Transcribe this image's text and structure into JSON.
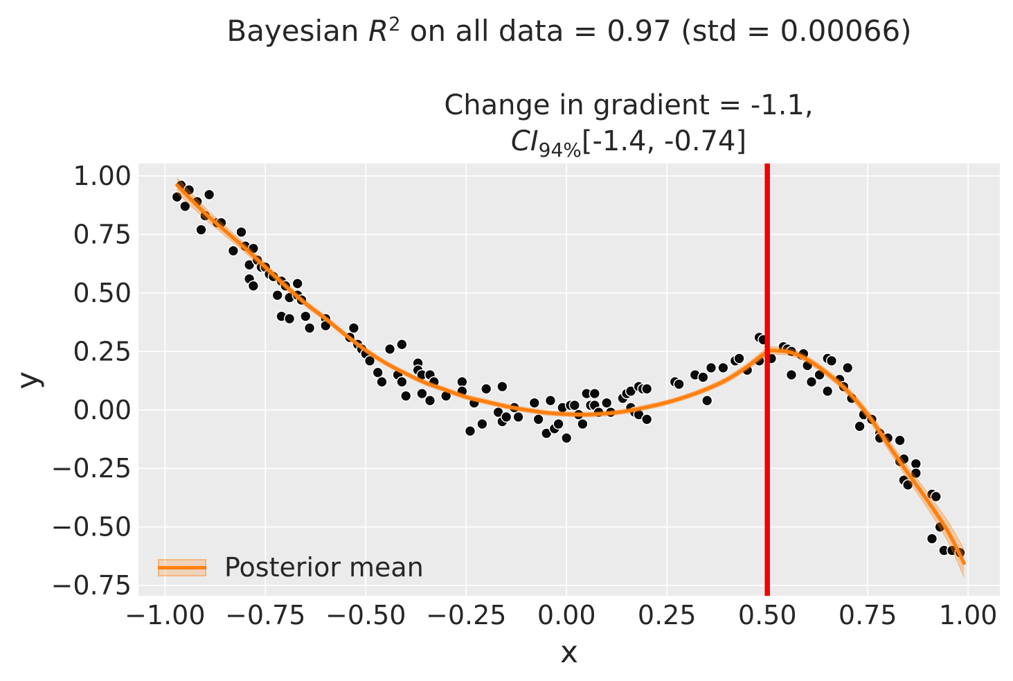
{
  "chart_data": {
    "type": "scatter",
    "title": {
      "prefix": "Bayesian ",
      "var": "R",
      "sup": "2",
      "rest": " on all data = 0.97 (std = 0.00066)"
    },
    "subtitle": {
      "line1": "Change in gradient = -1.1,",
      "ci_var": "CI",
      "ci_sub": "94%",
      "ci_rest": "[-1.4, -0.74]"
    },
    "xlabel": "x",
    "ylabel": "y",
    "xlim": [
      -1.066,
      1.079
    ],
    "ylim": [
      -0.794,
      1.053
    ],
    "grid": true,
    "x_ticks": {
      "values": [
        -1.0,
        -0.75,
        -0.5,
        -0.25,
        0.0,
        0.25,
        0.5,
        0.75,
        1.0
      ],
      "labels": [
        "−1.00",
        "−0.75",
        "−0.50",
        "−0.25",
        "0.00",
        "0.25",
        "0.50",
        "0.75",
        "1.00"
      ]
    },
    "y_ticks": {
      "values": [
        1.0,
        0.75,
        0.5,
        0.25,
        0.0,
        -0.25,
        -0.5,
        -0.75
      ],
      "labels": [
        "1.00",
        "0.75",
        "0.50",
        "0.25",
        "0.00",
        "−0.25",
        "−0.50",
        "−0.75"
      ]
    },
    "legend": {
      "position": "lower-left",
      "entries": [
        {
          "label": "Posterior mean",
          "type": "line-with-band"
        }
      ]
    },
    "vline": {
      "x": 0.5
    },
    "colors": {
      "figure_bg": "#ffffff",
      "axes_bg": "#ebebeb",
      "grid": "#ffffff",
      "text": "#262626",
      "scatter_fill": "#0a0a0a",
      "scatter_edge": "#ffffff",
      "mean_line": "#ff7f0e",
      "band_fill": "#ff7f0e",
      "band_opacity": 0.22,
      "vline": "#f20000"
    },
    "posterior_mean": {
      "x": [
        -0.97,
        -0.9,
        -0.85,
        -0.8,
        -0.75,
        -0.7,
        -0.65,
        -0.6,
        -0.55,
        -0.5,
        -0.45,
        -0.4,
        -0.35,
        -0.3,
        -0.25,
        -0.2,
        -0.15,
        -0.1,
        -0.05,
        0.0,
        0.05,
        0.1,
        0.15,
        0.2,
        0.25,
        0.3,
        0.35,
        0.4,
        0.45,
        0.5,
        0.53,
        0.56,
        0.6,
        0.65,
        0.7,
        0.75,
        0.8,
        0.85,
        0.9,
        0.95,
        0.99
      ],
      "y": [
        0.96,
        0.84,
        0.765,
        0.69,
        0.61,
        0.53,
        0.455,
        0.39,
        0.32,
        0.255,
        0.2,
        0.155,
        0.115,
        0.085,
        0.055,
        0.035,
        0.015,
        0.0,
        -0.012,
        -0.018,
        -0.02,
        -0.015,
        -0.005,
        0.012,
        0.032,
        0.058,
        0.09,
        0.13,
        0.185,
        0.248,
        0.252,
        0.245,
        0.215,
        0.155,
        0.08,
        -0.02,
        -0.145,
        -0.27,
        -0.39,
        -0.52,
        -0.655
      ],
      "band_halfwidth": [
        0.035,
        0.027,
        0.023,
        0.02,
        0.018,
        0.016,
        0.014,
        0.013,
        0.012,
        0.012,
        0.011,
        0.011,
        0.011,
        0.011,
        0.011,
        0.011,
        0.011,
        0.011,
        0.011,
        0.011,
        0.011,
        0.011,
        0.011,
        0.011,
        0.011,
        0.011,
        0.012,
        0.013,
        0.015,
        0.018,
        0.017,
        0.016,
        0.015,
        0.016,
        0.018,
        0.021,
        0.025,
        0.03,
        0.037,
        0.048,
        0.065
      ]
    },
    "scatter_points": [
      [
        -0.96,
        0.96
      ],
      [
        -0.97,
        0.91
      ],
      [
        -0.94,
        0.94
      ],
      [
        -0.95,
        0.87
      ],
      [
        -0.92,
        0.89
      ],
      [
        -0.89,
        0.92
      ],
      [
        -0.9,
        0.83
      ],
      [
        -0.91,
        0.77
      ],
      [
        -0.87,
        0.8
      ],
      [
        -0.86,
        0.8
      ],
      [
        -0.81,
        0.76
      ],
      [
        -0.83,
        0.68
      ],
      [
        -0.8,
        0.7
      ],
      [
        -0.78,
        0.69
      ],
      [
        -0.79,
        0.62
      ],
      [
        -0.77,
        0.64
      ],
      [
        -0.79,
        0.56
      ],
      [
        -0.78,
        0.53
      ],
      [
        -0.76,
        0.61
      ],
      [
        -0.75,
        0.61
      ],
      [
        -0.74,
        0.58
      ],
      [
        -0.73,
        0.57
      ],
      [
        -0.72,
        0.49
      ],
      [
        -0.71,
        0.55
      ],
      [
        -0.7,
        0.53
      ],
      [
        -0.69,
        0.48
      ],
      [
        -0.67,
        0.54
      ],
      [
        -0.67,
        0.49
      ],
      [
        -0.66,
        0.47
      ],
      [
        -0.71,
        0.4
      ],
      [
        -0.69,
        0.39
      ],
      [
        -0.65,
        0.4
      ],
      [
        -0.64,
        0.35
      ],
      [
        -0.6,
        0.39
      ],
      [
        -0.6,
        0.36
      ],
      [
        -0.53,
        0.35
      ],
      [
        -0.54,
        0.31
      ],
      [
        -0.52,
        0.28
      ],
      [
        -0.51,
        0.26
      ],
      [
        -0.5,
        0.24
      ],
      [
        -0.49,
        0.21
      ],
      [
        -0.44,
        0.26
      ],
      [
        -0.41,
        0.28
      ],
      [
        -0.47,
        0.16
      ],
      [
        -0.46,
        0.12
      ],
      [
        -0.42,
        0.15
      ],
      [
        -0.41,
        0.12
      ],
      [
        -0.37,
        0.2
      ],
      [
        -0.37,
        0.17
      ],
      [
        -0.36,
        0.15
      ],
      [
        -0.4,
        0.06
      ],
      [
        -0.36,
        0.07
      ],
      [
        -0.34,
        0.15
      ],
      [
        -0.34,
        0.04
      ],
      [
        -0.33,
        0.12
      ],
      [
        -0.3,
        0.06
      ],
      [
        -0.26,
        0.12
      ],
      [
        -0.26,
        0.08
      ],
      [
        -0.24,
        -0.09
      ],
      [
        -0.23,
        0.03
      ],
      [
        -0.21,
        -0.06
      ],
      [
        -0.2,
        0.09
      ],
      [
        -0.17,
        -0.01
      ],
      [
        -0.16,
        -0.05
      ],
      [
        -0.16,
        0.1
      ],
      [
        -0.15,
        -0.03
      ],
      [
        -0.13,
        0.01
      ],
      [
        -0.12,
        -0.03
      ],
      [
        -0.08,
        0.03
      ],
      [
        -0.07,
        -0.04
      ],
      [
        -0.05,
        -0.1
      ],
      [
        -0.04,
        0.04
      ],
      [
        -0.03,
        -0.08
      ],
      [
        -0.02,
        -0.06
      ],
      [
        -0.01,
        0.01
      ],
      [
        0.0,
        -0.12
      ],
      [
        0.01,
        0.02
      ],
      [
        0.02,
        0.02
      ],
      [
        0.03,
        -0.02
      ],
      [
        0.04,
        -0.06
      ],
      [
        0.05,
        0.07
      ],
      [
        0.06,
        0.02
      ],
      [
        0.07,
        0.07
      ],
      [
        0.07,
        0.02
      ],
      [
        0.08,
        -0.01
      ],
      [
        0.1,
        0.03
      ],
      [
        0.11,
        -0.01
      ],
      [
        0.14,
        0.05
      ],
      [
        0.15,
        0.07
      ],
      [
        0.16,
        0.01
      ],
      [
        0.16,
        0.08
      ],
      [
        0.17,
        -0.01
      ],
      [
        0.18,
        0.1
      ],
      [
        0.18,
        -0.02
      ],
      [
        0.19,
        0.09
      ],
      [
        0.2,
        0.09
      ],
      [
        0.2,
        -0.04
      ],
      [
        0.27,
        0.12
      ],
      [
        0.28,
        0.11
      ],
      [
        0.32,
        0.15
      ],
      [
        0.34,
        0.14
      ],
      [
        0.35,
        0.04
      ],
      [
        0.36,
        0.18
      ],
      [
        0.39,
        0.18
      ],
      [
        0.42,
        0.21
      ],
      [
        0.43,
        0.22
      ],
      [
        0.45,
        0.17
      ],
      [
        0.48,
        0.21
      ],
      [
        0.48,
        0.31
      ],
      [
        0.49,
        0.3
      ],
      [
        0.51,
        0.22
      ],
      [
        0.54,
        0.27
      ],
      [
        0.55,
        0.26
      ],
      [
        0.56,
        0.25
      ],
      [
        0.56,
        0.15
      ],
      [
        0.585,
        0.235
      ],
      [
        0.59,
        0.24
      ],
      [
        0.6,
        0.19
      ],
      [
        0.61,
        0.12
      ],
      [
        0.63,
        0.15
      ],
      [
        0.65,
        0.22
      ],
      [
        0.66,
        0.21
      ],
      [
        0.65,
        0.08
      ],
      [
        0.68,
        0.13
      ],
      [
        0.69,
        0.1
      ],
      [
        0.7,
        0.18
      ],
      [
        0.71,
        0.05
      ],
      [
        0.74,
        -0.02
      ],
      [
        0.73,
        -0.07
      ],
      [
        0.76,
        -0.04
      ],
      [
        0.78,
        -0.1
      ],
      [
        0.78,
        -0.12
      ],
      [
        0.8,
        -0.12
      ],
      [
        0.83,
        -0.13
      ],
      [
        0.83,
        -0.22
      ],
      [
        0.84,
        -0.21
      ],
      [
        0.87,
        -0.23
      ],
      [
        0.87,
        -0.27
      ],
      [
        0.84,
        -0.3
      ],
      [
        0.85,
        -0.32
      ],
      [
        0.91,
        -0.36
      ],
      [
        0.92,
        -0.37
      ],
      [
        0.93,
        -0.5
      ],
      [
        0.91,
        -0.55
      ],
      [
        0.94,
        -0.6
      ],
      [
        0.96,
        -0.6
      ],
      [
        0.98,
        -0.61
      ]
    ]
  }
}
